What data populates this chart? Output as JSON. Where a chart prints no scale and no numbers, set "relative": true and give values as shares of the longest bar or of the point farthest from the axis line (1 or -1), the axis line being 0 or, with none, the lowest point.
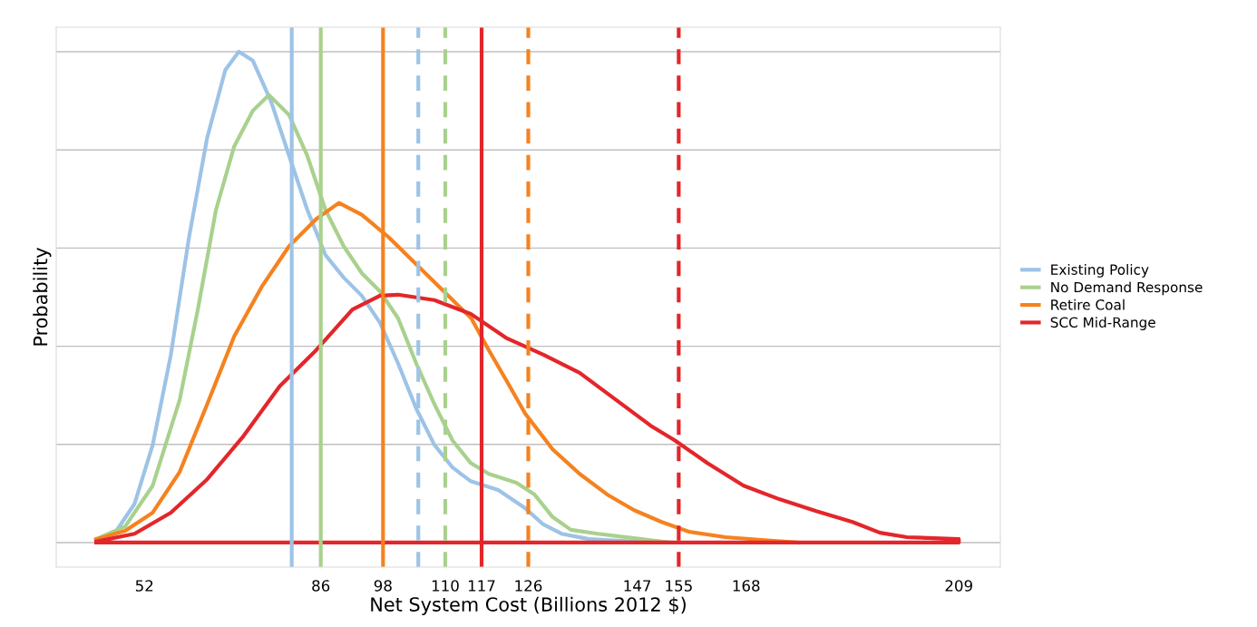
{
  "chart_data": {
    "type": "line",
    "relative": true,
    "xlabel": "Net System Cost (Billions 2012 $)",
    "ylabel": "Probability",
    "xlim": [
      35,
      217
    ],
    "xticks": [
      52,
      86,
      98,
      110,
      117,
      126,
      147,
      155,
      168,
      209
    ],
    "grid": "y",
    "legend": "right",
    "tick_labels": "x",
    "marker": "none",
    "line_style": "solid",
    "series": [
      {
        "name": "Existing Policy",
        "color": "#9dc3e6",
        "x": [
          42.7,
          46.6,
          50.1,
          53.6,
          57.1,
          60.6,
          64.1,
          67.6,
          70.2,
          72.9,
          76.4,
          79.9,
          83.4,
          86.9,
          90.4,
          93.9,
          97.4,
          100.9,
          104.4,
          107.9,
          111.4,
          114.9,
          120.2,
          125.4,
          128.9,
          132.4,
          137.7,
          146.4,
          154.3
        ],
        "values": [
          0.006,
          0.024,
          0.079,
          0.199,
          0.383,
          0.622,
          0.825,
          0.963,
          1.0,
          0.982,
          0.899,
          0.788,
          0.678,
          0.586,
          0.54,
          0.503,
          0.448,
          0.365,
          0.273,
          0.199,
          0.153,
          0.125,
          0.107,
          0.07,
          0.037,
          0.018,
          0.007,
          0.002,
          0.0
        ]
      },
      {
        "name": "No Demand Response",
        "color": "#a9d18e",
        "x": [
          42.7,
          48.3,
          53.6,
          58.8,
          62.3,
          65.8,
          69.3,
          72.9,
          76.0,
          79.9,
          83.4,
          86.9,
          90.4,
          93.9,
          97.4,
          100.9,
          104.4,
          107.9,
          111.4,
          114.9,
          118.4,
          123.7,
          127.2,
          130.7,
          134.2,
          139.4,
          146.4,
          153.5
        ],
        "values": [
          0.007,
          0.033,
          0.116,
          0.291,
          0.475,
          0.678,
          0.807,
          0.88,
          0.912,
          0.871,
          0.788,
          0.678,
          0.604,
          0.549,
          0.512,
          0.457,
          0.365,
          0.282,
          0.208,
          0.162,
          0.14,
          0.122,
          0.098,
          0.052,
          0.026,
          0.018,
          0.009,
          0.0
        ]
      },
      {
        "name": "Retire Coal",
        "color": "#f5821f",
        "x": [
          42.7,
          48.3,
          53.6,
          58.8,
          64.1,
          69.3,
          74.6,
          79.9,
          85.1,
          89.5,
          93.9,
          99.1,
          104.4,
          109.7,
          115.0,
          118.4,
          121.9,
          125.4,
          130.7,
          135.9,
          141.2,
          146.4,
          151.7,
          157.0,
          164.0,
          172.7,
          178.0
        ],
        "values": [
          0.007,
          0.024,
          0.061,
          0.144,
          0.282,
          0.42,
          0.521,
          0.604,
          0.659,
          0.692,
          0.668,
          0.622,
          0.567,
          0.512,
          0.457,
          0.392,
          0.328,
          0.263,
          0.19,
          0.14,
          0.098,
          0.066,
          0.042,
          0.022,
          0.011,
          0.004,
          0.0
        ]
      },
      {
        "name": "SCC Mid-Range",
        "color": "#e3262a",
        "x": [
          42.7,
          50.1,
          57.1,
          64.1,
          71.1,
          78.1,
          85.1,
          92.1,
          97.4,
          100.9,
          107.9,
          114.9,
          121.9,
          128.9,
          135.9,
          142.9,
          149.9,
          154.3,
          160.5,
          167.5,
          174.5,
          181.5,
          188.5,
          193.8,
          199.0,
          209,
          209,
          42.7
        ],
        "values": [
          0.002,
          0.018,
          0.061,
          0.129,
          0.217,
          0.319,
          0.392,
          0.475,
          0.503,
          0.505,
          0.494,
          0.466,
          0.416,
          0.383,
          0.346,
          0.291,
          0.236,
          0.208,
          0.162,
          0.116,
          0.088,
          0.064,
          0.042,
          0.02,
          0.011,
          0.007,
          0.0,
          0.0
        ]
      }
    ],
    "ref_lines": [
      {
        "axis": "x",
        "value": 80.4,
        "color": "#9dc3e6",
        "line_style": "solid"
      },
      {
        "axis": "x",
        "value": 86,
        "color": "#a9d18e",
        "line_style": "solid"
      },
      {
        "axis": "x",
        "value": 98,
        "color": "#f5821f",
        "line_style": "solid"
      },
      {
        "axis": "x",
        "value": 104.8,
        "color": "#9dc3e6",
        "line_style": "dashed"
      },
      {
        "axis": "x",
        "value": 110,
        "color": "#a9d18e",
        "line_style": "dashed"
      },
      {
        "axis": "x",
        "value": 117,
        "color": "#e3262a",
        "line_style": "solid"
      },
      {
        "axis": "x",
        "value": 126,
        "color": "#f5821f",
        "line_style": "dashed"
      },
      {
        "axis": "x",
        "value": 155,
        "color": "#e3262a",
        "line_style": "dashed"
      }
    ]
  }
}
